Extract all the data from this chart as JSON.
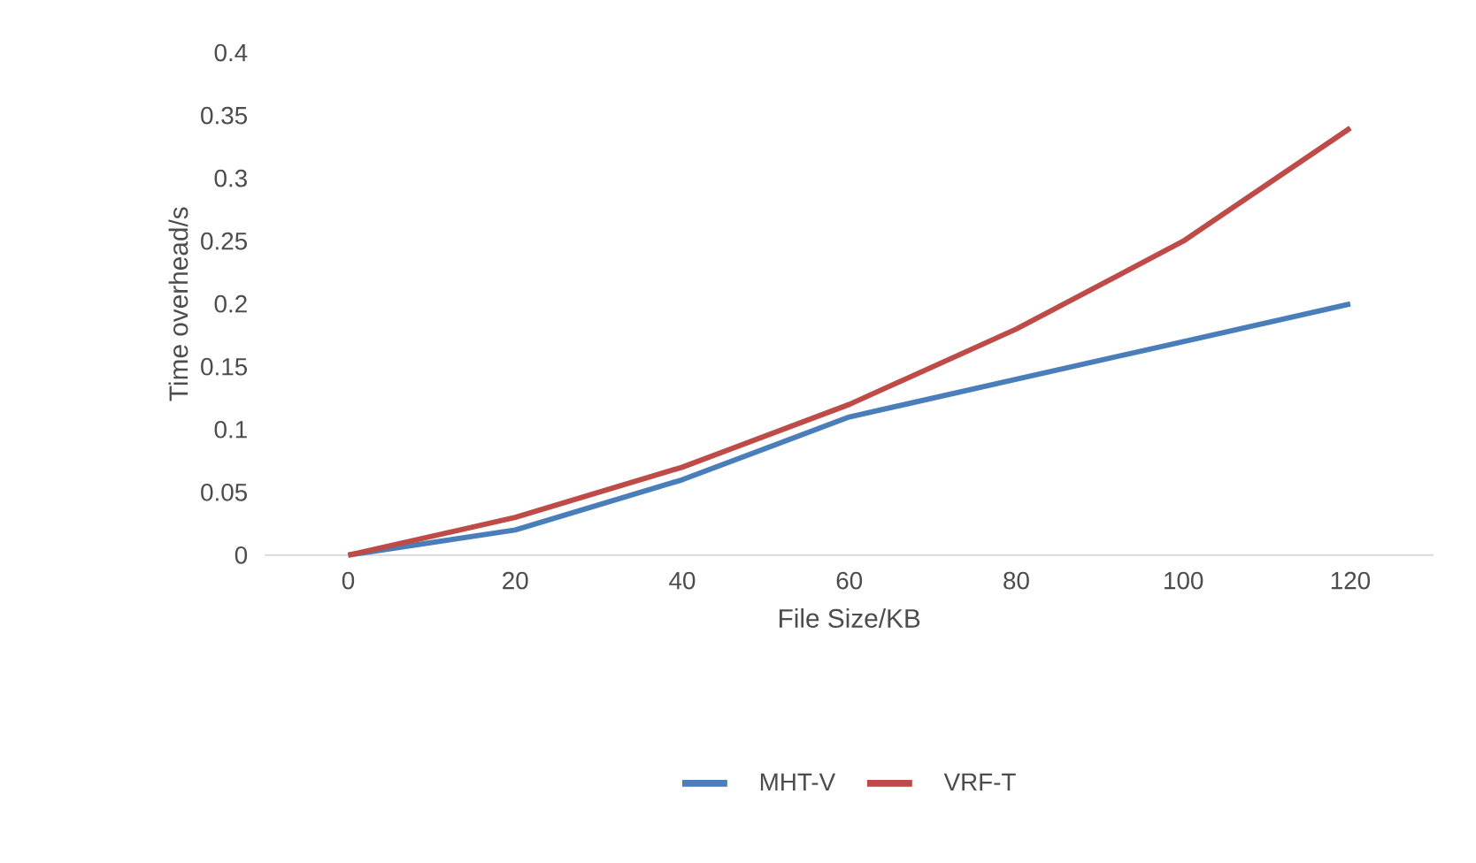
{
  "chart_data": {
    "type": "line",
    "xlabel": "File Size/KB",
    "ylabel": "Time overhead/s",
    "categories": [
      "0",
      "20",
      "40",
      "60",
      "80",
      "100",
      "120"
    ],
    "series": [
      {
        "name": "MHT-V",
        "color": "#4a7ebb",
        "values": [
          0,
          0.02,
          0.06,
          0.11,
          0.14,
          0.17,
          0.2
        ]
      },
      {
        "name": "VRF-T",
        "color": "#be4b48",
        "values": [
          0,
          0.03,
          0.07,
          0.12,
          0.18,
          0.25,
          0.34
        ]
      }
    ],
    "ylim": [
      0,
      0.4
    ],
    "yticks": [
      0,
      0.05,
      0.1,
      0.15,
      0.2,
      0.25,
      0.3,
      0.35,
      0.4
    ],
    "legend": "bottom",
    "marker": "none",
    "line_style": "solid"
  }
}
